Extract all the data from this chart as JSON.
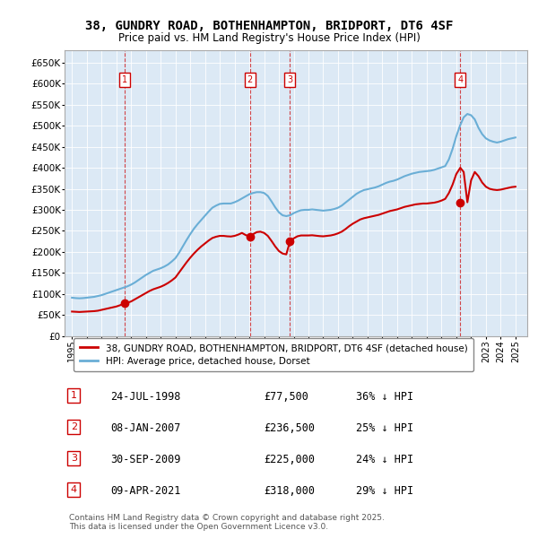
{
  "title": "38, GUNDRY ROAD, BOTHENHAMPTON, BRIDPORT, DT6 4SF",
  "subtitle": "Price paid vs. HM Land Registry's House Price Index (HPI)",
  "hpi_color": "#6aaed6",
  "price_color": "#cc0000",
  "bg_color": "#dce9f5",
  "plot_bg": "#dce9f5",
  "ylabel_prefix": "£",
  "yticks": [
    0,
    50000,
    100000,
    150000,
    200000,
    250000,
    300000,
    350000,
    400000,
    450000,
    500000,
    550000,
    600000,
    650000
  ],
  "ytick_labels": [
    "£0",
    "£50K",
    "£100K",
    "£150K",
    "£200K",
    "£250K",
    "£300K",
    "£350K",
    "£400K",
    "£450K",
    "£500K",
    "£550K",
    "£600K",
    "£650K"
  ],
  "ylim": [
    0,
    680000
  ],
  "xlim_start": 1994.5,
  "xlim_end": 2025.8,
  "xticks": [
    1995,
    1996,
    1997,
    1998,
    1999,
    2000,
    2001,
    2002,
    2003,
    2004,
    2005,
    2006,
    2007,
    2008,
    2009,
    2010,
    2011,
    2012,
    2013,
    2014,
    2015,
    2016,
    2017,
    2018,
    2019,
    2020,
    2021,
    2022,
    2023,
    2024,
    2025
  ],
  "transactions": [
    {
      "num": 1,
      "year": 1998.56,
      "price": 77500,
      "label": "1",
      "date": "24-JUL-1998",
      "amount": "£77,500",
      "pct": "36% ↓ HPI"
    },
    {
      "num": 2,
      "year": 2007.03,
      "price": 236500,
      "label": "2",
      "date": "08-JAN-2007",
      "amount": "£236,500",
      "pct": "25% ↓ HPI"
    },
    {
      "num": 3,
      "year": 2009.75,
      "price": 225000,
      "label": "3",
      "date": "30-SEP-2009",
      "amount": "£225,000",
      "pct": "24% ↓ HPI"
    },
    {
      "num": 4,
      "year": 2021.27,
      "price": 318000,
      "label": "4",
      "date": "09-APR-2021",
      "amount": "£318,000",
      "pct": "29% ↓ HPI"
    }
  ],
  "legend_line1": "38, GUNDRY ROAD, BOTHENHAMPTON, BRIDPORT, DT6 4SF (detached house)",
  "legend_line2": "HPI: Average price, detached house, Dorset",
  "footer": "Contains HM Land Registry data © Crown copyright and database right 2025.\nThis data is licensed under the Open Government Licence v3.0.",
  "hpi_data": {
    "years": [
      1995.0,
      1995.25,
      1995.5,
      1995.75,
      1996.0,
      1996.25,
      1996.5,
      1996.75,
      1997.0,
      1997.25,
      1997.5,
      1997.75,
      1998.0,
      1998.25,
      1998.5,
      1998.75,
      1999.0,
      1999.25,
      1999.5,
      1999.75,
      2000.0,
      2000.25,
      2000.5,
      2000.75,
      2001.0,
      2001.25,
      2001.5,
      2001.75,
      2002.0,
      2002.25,
      2002.5,
      2002.75,
      2003.0,
      2003.25,
      2003.5,
      2003.75,
      2004.0,
      2004.25,
      2004.5,
      2004.75,
      2005.0,
      2005.25,
      2005.5,
      2005.75,
      2006.0,
      2006.25,
      2006.5,
      2006.75,
      2007.0,
      2007.25,
      2007.5,
      2007.75,
      2008.0,
      2008.25,
      2008.5,
      2008.75,
      2009.0,
      2009.25,
      2009.5,
      2009.75,
      2010.0,
      2010.25,
      2010.5,
      2010.75,
      2011.0,
      2011.25,
      2011.5,
      2011.75,
      2012.0,
      2012.25,
      2012.5,
      2012.75,
      2013.0,
      2013.25,
      2013.5,
      2013.75,
      2014.0,
      2014.25,
      2014.5,
      2014.75,
      2015.0,
      2015.25,
      2015.5,
      2015.75,
      2016.0,
      2016.25,
      2016.5,
      2016.75,
      2017.0,
      2017.25,
      2017.5,
      2017.75,
      2018.0,
      2018.25,
      2018.5,
      2018.75,
      2019.0,
      2019.25,
      2019.5,
      2019.75,
      2020.0,
      2020.25,
      2020.5,
      2020.75,
      2021.0,
      2021.25,
      2021.5,
      2021.75,
      2022.0,
      2022.25,
      2022.5,
      2022.75,
      2023.0,
      2023.25,
      2023.5,
      2023.75,
      2024.0,
      2024.25,
      2024.5,
      2024.75,
      2025.0
    ],
    "values": [
      91000,
      90000,
      89500,
      90000,
      91000,
      92000,
      93000,
      95000,
      97000,
      100000,
      103000,
      106000,
      109000,
      112000,
      115000,
      118000,
      122000,
      127000,
      133000,
      139000,
      145000,
      150000,
      155000,
      158000,
      161000,
      165000,
      170000,
      177000,
      185000,
      198000,
      213000,
      228000,
      242000,
      255000,
      266000,
      276000,
      286000,
      296000,
      305000,
      310000,
      314000,
      315000,
      315000,
      315000,
      318000,
      322000,
      327000,
      332000,
      337000,
      340000,
      342000,
      342000,
      340000,
      333000,
      320000,
      306000,
      294000,
      287000,
      285000,
      287000,
      292000,
      296000,
      299000,
      300000,
      300000,
      301000,
      300000,
      299000,
      298000,
      299000,
      300000,
      302000,
      305000,
      310000,
      317000,
      324000,
      331000,
      338000,
      343000,
      347000,
      349000,
      351000,
      353000,
      356000,
      360000,
      364000,
      367000,
      369000,
      372000,
      376000,
      380000,
      383000,
      386000,
      388000,
      390000,
      391000,
      392000,
      393000,
      395000,
      398000,
      401000,
      404000,
      420000,
      445000,
      475000,
      500000,
      520000,
      528000,
      525000,
      515000,
      495000,
      480000,
      470000,
      465000,
      462000,
      460000,
      462000,
      465000,
      468000,
      470000,
      472000
    ]
  },
  "price_data": {
    "years": [
      1995.0,
      1995.25,
      1995.5,
      1995.75,
      1996.0,
      1996.25,
      1996.5,
      1996.75,
      1997.0,
      1997.25,
      1997.5,
      1997.75,
      1998.0,
      1998.25,
      1998.56,
      1998.75,
      1999.0,
      1999.25,
      1999.5,
      1999.75,
      2000.0,
      2000.25,
      2000.5,
      2000.75,
      2001.0,
      2001.25,
      2001.5,
      2001.75,
      2002.0,
      2002.25,
      2002.5,
      2002.75,
      2003.0,
      2003.25,
      2003.5,
      2003.75,
      2004.0,
      2004.25,
      2004.5,
      2004.75,
      2005.0,
      2005.25,
      2005.5,
      2005.75,
      2006.0,
      2006.25,
      2006.5,
      2006.75,
      2007.03,
      2007.25,
      2007.5,
      2007.75,
      2008.0,
      2008.25,
      2008.5,
      2008.75,
      2009.0,
      2009.25,
      2009.5,
      2009.75,
      2010.0,
      2010.25,
      2010.5,
      2010.75,
      2011.0,
      2011.25,
      2011.5,
      2011.75,
      2012.0,
      2012.25,
      2012.5,
      2012.75,
      2013.0,
      2013.25,
      2013.5,
      2013.75,
      2014.0,
      2014.25,
      2014.5,
      2014.75,
      2015.0,
      2015.25,
      2015.5,
      2015.75,
      2016.0,
      2016.25,
      2016.5,
      2016.75,
      2017.0,
      2017.25,
      2017.5,
      2017.75,
      2018.0,
      2018.25,
      2018.5,
      2018.75,
      2019.0,
      2019.25,
      2019.5,
      2019.75,
      2020.0,
      2020.25,
      2020.5,
      2020.75,
      2021.0,
      2021.27,
      2021.5,
      2021.75,
      2022.0,
      2022.25,
      2022.5,
      2022.75,
      2023.0,
      2023.25,
      2023.5,
      2023.75,
      2024.0,
      2024.25,
      2024.5,
      2024.75,
      2025.0
    ],
    "values": [
      58000,
      57500,
      57000,
      57500,
      58000,
      58500,
      59000,
      60000,
      62000,
      64000,
      66000,
      68000,
      70000,
      73000,
      77500,
      79000,
      82000,
      87000,
      92000,
      97000,
      102000,
      107000,
      111000,
      114000,
      117000,
      121000,
      126000,
      132000,
      139000,
      151000,
      163000,
      175000,
      186000,
      196000,
      205000,
      213000,
      220000,
      227000,
      233000,
      236000,
      238000,
      238000,
      237000,
      236500,
      238000,
      241000,
      245000,
      240000,
      236500,
      242000,
      247000,
      248000,
      245000,
      238000,
      226000,
      213000,
      202000,
      196000,
      194000,
      225000,
      232000,
      237000,
      239000,
      239000,
      239000,
      239500,
      238500,
      237500,
      237000,
      238000,
      239000,
      241000,
      244000,
      248000,
      254000,
      261000,
      267000,
      272000,
      277000,
      280000,
      282000,
      284000,
      286000,
      288000,
      291000,
      294000,
      297000,
      299000,
      301000,
      304000,
      307000,
      309000,
      311000,
      313000,
      314000,
      315000,
      315000,
      316000,
      317000,
      319000,
      322000,
      326000,
      340000,
      360000,
      385000,
      400000,
      390000,
      318000,
      370000,
      390000,
      380000,
      365000,
      355000,
      350000,
      348000,
      347000,
      348000,
      350000,
      352000,
      354000,
      355000
    ]
  }
}
